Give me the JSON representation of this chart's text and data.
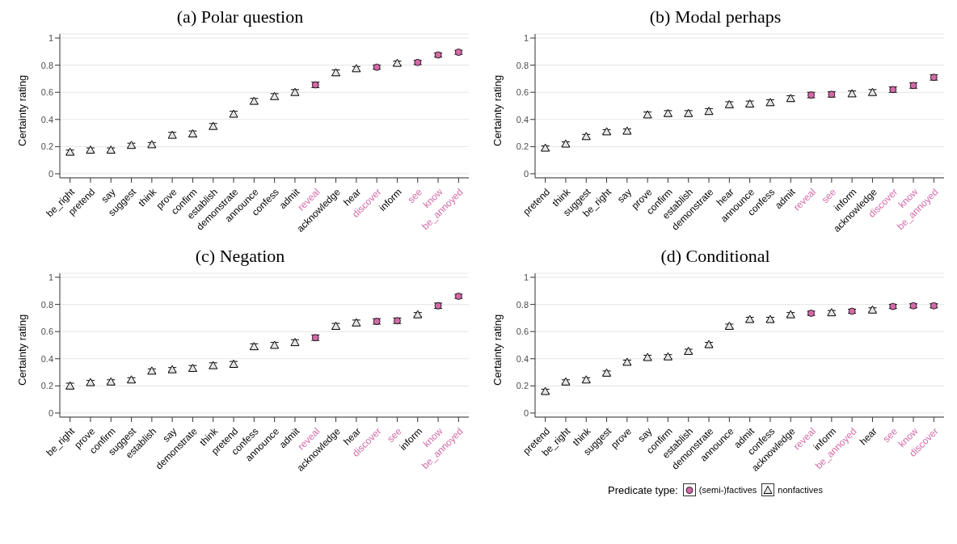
{
  "chart_data": [
    {
      "type": "scatter",
      "title": "(a) Polar question",
      "ylabel": "Certainty rating",
      "ylim": [
        -0.03,
        1.03
      ],
      "yticks": [
        0,
        0.2,
        0.4,
        0.6,
        0.8,
        1
      ],
      "grid": "y",
      "categories": [
        "be_right",
        "pretend",
        "say",
        "suggest",
        "think",
        "prove",
        "confirm",
        "establish",
        "demonstrate",
        "announce",
        "confess",
        "admit",
        "reveal",
        "acknowledge",
        "hear",
        "discover",
        "inform",
        "see",
        "know",
        "be_annoyed"
      ],
      "series": [
        {
          "color": "#d36aa8",
          "marker": "circle",
          "values": [
            null,
            null,
            null,
            null,
            null,
            null,
            null,
            null,
            null,
            null,
            null,
            null,
            0.655,
            null,
            null,
            0.785,
            null,
            0.82,
            0.875,
            0.895
          ],
          "errors": [
            null,
            null,
            null,
            null,
            null,
            null,
            null,
            null,
            null,
            null,
            null,
            null,
            0.02,
            null,
            null,
            0.015,
            null,
            0.015,
            0.015,
            0.015
          ]
        },
        {
          "color": "#000000",
          "marker": "triangle",
          "values": [
            0.16,
            0.175,
            0.175,
            0.21,
            0.215,
            0.285,
            0.295,
            0.35,
            0.44,
            0.535,
            0.57,
            0.6,
            null,
            0.745,
            0.775,
            null,
            0.815,
            null,
            null,
            null
          ],
          "errors": [
            0.015,
            0.015,
            0.015,
            0.015,
            0.015,
            0.02,
            0.02,
            0.02,
            0.02,
            0.02,
            0.02,
            0.02,
            null,
            0.02,
            0.015,
            null,
            0.015,
            null,
            null,
            null
          ]
        }
      ]
    },
    {
      "type": "scatter",
      "title": "(b) Modal perhaps",
      "ylabel": "Certainty rating",
      "ylim": [
        -0.03,
        1.03
      ],
      "yticks": [
        0,
        0.2,
        0.4,
        0.6,
        0.8,
        1
      ],
      "grid": "y",
      "categories": [
        "pretend",
        "think",
        "suggest",
        "be_right",
        "say",
        "prove",
        "confirm",
        "establish",
        "demonstrate",
        "hear",
        "announce",
        "confess",
        "admit",
        "reveal",
        "see",
        "inform",
        "acknowledge",
        "discover",
        "know",
        "be_annoyed"
      ],
      "series": [
        {
          "color": "#d36aa8",
          "marker": "circle",
          "values": [
            null,
            null,
            null,
            null,
            null,
            null,
            null,
            null,
            null,
            null,
            null,
            null,
            null,
            0.58,
            0.585,
            null,
            null,
            0.62,
            0.65,
            0.71
          ],
          "errors": [
            null,
            null,
            null,
            null,
            null,
            null,
            null,
            null,
            null,
            null,
            null,
            null,
            null,
            0.02,
            0.02,
            null,
            null,
            0.02,
            0.02,
            0.02
          ]
        },
        {
          "color": "#000000",
          "marker": "triangle",
          "values": [
            0.19,
            0.22,
            0.275,
            0.31,
            0.315,
            0.435,
            0.445,
            0.445,
            0.46,
            0.51,
            0.515,
            0.525,
            0.555,
            null,
            null,
            0.59,
            0.6,
            null,
            null,
            null
          ],
          "errors": [
            0.015,
            0.015,
            0.015,
            0.015,
            0.015,
            0.02,
            0.02,
            0.02,
            0.02,
            0.02,
            0.02,
            0.02,
            0.02,
            null,
            null,
            0.02,
            0.02,
            null,
            null,
            null
          ]
        }
      ]
    },
    {
      "type": "scatter",
      "title": "(c) Negation",
      "ylabel": "Certainty rating",
      "ylim": [
        -0.03,
        1.03
      ],
      "yticks": [
        0,
        0.2,
        0.4,
        0.6,
        0.8,
        1
      ],
      "grid": "y",
      "categories": [
        "be_right",
        "prove",
        "confirm",
        "suggest",
        "establish",
        "say",
        "demonstrate",
        "think",
        "pretend",
        "confess",
        "announce",
        "admit",
        "reveal",
        "acknowledge",
        "hear",
        "discover",
        "see",
        "inform",
        "know",
        "be_annoyed"
      ],
      "series": [
        {
          "color": "#d36aa8",
          "marker": "circle",
          "values": [
            null,
            null,
            null,
            null,
            null,
            null,
            null,
            null,
            null,
            null,
            null,
            null,
            0.555,
            null,
            null,
            0.675,
            0.68,
            null,
            0.79,
            0.86
          ],
          "errors": [
            null,
            null,
            null,
            null,
            null,
            null,
            null,
            null,
            null,
            null,
            null,
            null,
            0.02,
            null,
            null,
            0.02,
            0.02,
            null,
            0.02,
            0.015
          ]
        },
        {
          "color": "#000000",
          "marker": "triangle",
          "values": [
            0.2,
            0.225,
            0.23,
            0.245,
            0.31,
            0.32,
            0.33,
            0.35,
            0.36,
            0.49,
            0.5,
            0.52,
            null,
            0.64,
            0.665,
            null,
            null,
            0.725,
            null,
            null
          ],
          "errors": [
            0.02,
            0.015,
            0.015,
            0.015,
            0.015,
            0.015,
            0.02,
            0.02,
            0.02,
            0.02,
            0.02,
            0.02,
            null,
            0.02,
            0.02,
            null,
            null,
            0.015,
            null,
            null
          ]
        }
      ]
    },
    {
      "type": "scatter",
      "title": "(d) Conditional",
      "ylabel": "Certainty rating",
      "ylim": [
        -0.03,
        1.03
      ],
      "yticks": [
        0,
        0.2,
        0.4,
        0.6,
        0.8,
        1
      ],
      "grid": "y",
      "legend": "bottom",
      "legend_title": "Predicate type:",
      "categories": [
        "pretend",
        "be_right",
        "think",
        "suggest",
        "prove",
        "say",
        "confirm",
        "establish",
        "demonstrate",
        "announce",
        "admit",
        "confess",
        "acknowledge",
        "reveal",
        "inform",
        "be_annoyed",
        "hear",
        "see",
        "know",
        "discover"
      ],
      "series": [
        {
          "name": "(semi-)factives",
          "color": "#d36aa8",
          "marker": "circle",
          "values": [
            null,
            null,
            null,
            null,
            null,
            null,
            null,
            null,
            null,
            null,
            null,
            null,
            null,
            0.735,
            null,
            0.75,
            null,
            0.785,
            0.79,
            0.79
          ],
          "errors": [
            null,
            null,
            null,
            null,
            null,
            null,
            null,
            null,
            null,
            null,
            null,
            null,
            null,
            0.015,
            null,
            0.015,
            null,
            0.015,
            0.015,
            0.015
          ]
        },
        {
          "name": "nonfactives",
          "color": "#000000",
          "marker": "triangle",
          "values": [
            0.16,
            0.23,
            0.245,
            0.295,
            0.375,
            0.41,
            0.415,
            0.455,
            0.505,
            0.64,
            0.69,
            0.69,
            0.725,
            null,
            0.74,
            null,
            0.76,
            null,
            null,
            null
          ],
          "errors": [
            0.015,
            0.015,
            0.015,
            0.015,
            0.015,
            0.015,
            0.015,
            0.015,
            0.015,
            0.015,
            0.015,
            0.015,
            0.015,
            null,
            0.015,
            null,
            0.015,
            null,
            null,
            null
          ]
        }
      ]
    }
  ]
}
